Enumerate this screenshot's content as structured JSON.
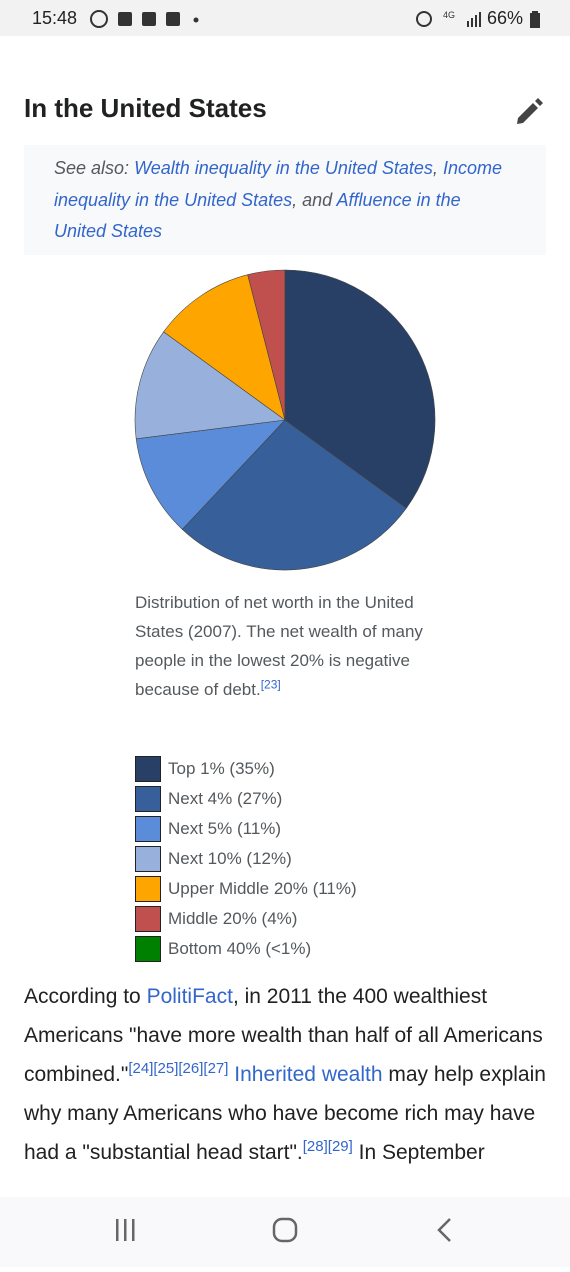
{
  "status": {
    "time": "15:48",
    "battery": "66%",
    "network": "4G"
  },
  "heading": "In the United States",
  "see_also": [
    {
      "text": "See also: "
    },
    {
      "text": "Wealth inequality in the United States",
      "style": "link"
    },
    {
      "text": ", "
    },
    {
      "text": "Income inequality in the United States",
      "style": "link"
    },
    {
      "text": ", and "
    },
    {
      "text": "Affluence in the United States",
      "style": "link"
    }
  ],
  "pie": {
    "type": "pie",
    "values": [
      35,
      27,
      11,
      12,
      11,
      4,
      0
    ],
    "colors": [
      "#283f66",
      "#375f99",
      "#5a8cd9",
      "#98b1dc",
      "#ffa500",
      "#c0504d",
      "#008000"
    ]
  },
  "caption": [
    {
      "text": "Distribution of net worth in the United States (2007). The net wealth of many people in the lowest 20% is negative because of debt."
    },
    {
      "text": "[23]",
      "style": "sup"
    }
  ],
  "legend": [
    "Top 1% (35%)",
    "Next 4% (27%)",
    "Next 5% (11%)",
    "Next 10% (12%)",
    "Upper Middle 20% (11%)",
    "Middle 20% (4%)",
    "Bottom 40% (<1%)"
  ],
  "paragraph": [
    {
      "text": "According to "
    },
    {
      "text": "PolitiFact",
      "style": "link"
    },
    {
      "text": ", in 2011 the 400 wealthiest Americans \"have more wealth than half of all Americans combined.\""
    },
    {
      "text": "[24][25][26][27]",
      "style": "sup"
    },
    {
      "text": " "
    },
    {
      "text": "Inherited wealth",
      "style": "link"
    },
    {
      "text": " may help explain why many Americans who have become rich may have had a \"substantial head start\"."
    },
    {
      "text": "[28][29]",
      "style": "sup"
    },
    {
      "text": " In September"
    }
  ]
}
